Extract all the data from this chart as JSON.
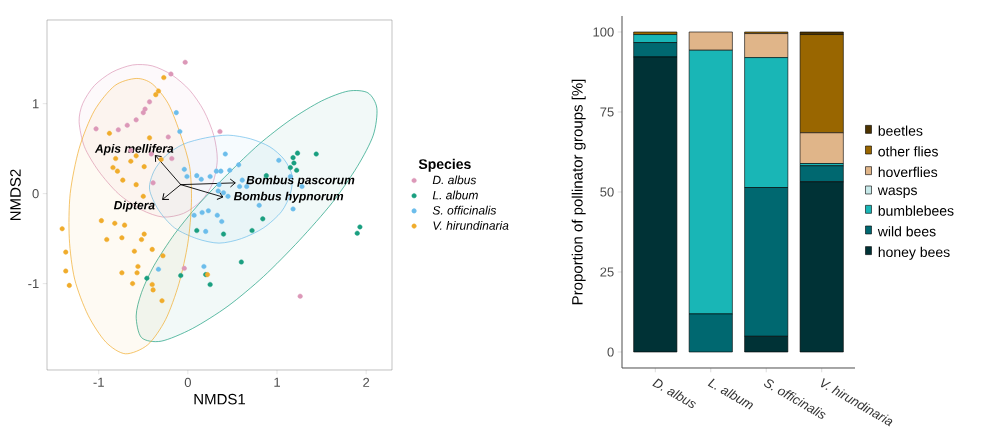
{
  "chart_data": [
    {
      "type": "scatter",
      "xlabel": "NMDS1",
      "ylabel": "NMDS2",
      "legend_title": "Species",
      "legend": "right",
      "marker": "circle",
      "grid": false,
      "xlim": [
        -1.58,
        2.29
      ],
      "ylim": [
        -1.96,
        1.93
      ],
      "xticks": [
        -1,
        0,
        1,
        2
      ],
      "yticks": [
        -1,
        0,
        1
      ],
      "series": [
        {
          "name": "D. albus",
          "color": "#dc98b8",
          "x": [
            -0.03,
            -0.19,
            -0.43,
            -0.48,
            -0.5,
            -0.58,
            -0.68,
            -0.78,
            -1.03,
            -0.22,
            0.36,
            -0.64,
            -0.41,
            -0.18,
            -0.39,
            -0.04,
            1.26
          ],
          "values": [
            1.46,
            1.33,
            1.02,
            0.94,
            0.9,
            0.82,
            0.76,
            0.71,
            0.72,
            0.63,
            0.69,
            0.48,
            0.44,
            0.39,
            0.12,
            -0.83,
            -1.14
          ]
        },
        {
          "name": "L. album",
          "color": "#1a9f80",
          "x": [
            -0.46,
            -0.08,
            0.1,
            0.2,
            0.25,
            1.23,
            1.18,
            1.44,
            1.19,
            1.15,
            1.22,
            0.88,
            0.84,
            0.72,
            0.4,
            0.6,
            1.93,
            1.9
          ],
          "values": [
            -0.94,
            -0.91,
            -0.41,
            -0.9,
            -1.01,
            0.45,
            0.4,
            0.44,
            0.34,
            0.29,
            0.26,
            0.2,
            -0.28,
            -0.41,
            -0.45,
            -0.76,
            -0.37,
            -0.44
          ]
        },
        {
          "name": "S. officinalis",
          "color": "#6cbdeb",
          "x": [
            -0.13,
            -0.09,
            -0.04,
            -0.01,
            0.1,
            0.15,
            0.25,
            0.32,
            -0.33,
            0.18,
            0.07,
            0.16,
            0.23,
            0.33,
            0.2,
            0.42,
            0.57,
            0.47,
            0.37,
            1.02,
            1.15,
            0.61,
            0.66,
            0.58,
            0.35,
            0.4,
            0.34,
            0.45,
            1.28,
            0.8,
            1.18,
            0.38
          ],
          "values": [
            0.9,
            0.69,
            0.27,
            0.19,
            0.2,
            0.16,
            0.19,
            0.25,
            -0.84,
            -0.81,
            -0.24,
            -0.21,
            -0.19,
            -0.24,
            -0.42,
            0.44,
            0.32,
            0.26,
            0.25,
            0.37,
            0.19,
            0.15,
            0.08,
            0.08,
            0.1,
            0.01,
            0.03,
            -0.03,
            0.08,
            -0.13,
            -0.17,
            -0.31
          ]
        },
        {
          "name": "V. hirundinaria",
          "color": "#f0ac2c",
          "x": [
            -0.27,
            -0.33,
            -0.36,
            -0.88,
            -0.43,
            -0.81,
            -0.58,
            -0.64,
            -0.84,
            -0.79,
            -0.49,
            -0.73,
            -0.58,
            -0.5,
            -0.3,
            -1.41,
            -0.97,
            -0.82,
            -0.71,
            -0.91,
            -0.74,
            -0.49,
            -0.52,
            -1.37,
            -0.6,
            -0.4,
            -0.28,
            -1.37,
            -1.33,
            -0.56,
            -0.57,
            -0.74,
            -0.62,
            -0.4,
            -0.39,
            -0.29,
            0.22
          ],
          "values": [
            1.29,
            1.14,
            1.1,
            0.67,
            0.62,
            0.39,
            0.42,
            0.36,
            0.29,
            0.25,
            0.3,
            0.15,
            0.1,
            -0.03,
            0.38,
            -0.39,
            -0.3,
            -0.33,
            -0.35,
            -0.51,
            -0.49,
            -0.45,
            -0.51,
            -0.65,
            -0.64,
            -0.62,
            -0.69,
            -0.86,
            -1.02,
            -0.81,
            -0.88,
            -0.88,
            -1.0,
            -1.01,
            -1.07,
            -1.19,
            -0.9
          ]
        }
      ],
      "annotations": [
        "Apis mellifera",
        "Diptera",
        "Bombus pascorum",
        "Bombus hypnorum"
      ]
    },
    {
      "type": "bar",
      "stacked": true,
      "ylabel": "Proportion of pollinator groups [%]",
      "legend": "right",
      "grid": false,
      "categories": [
        "D. albus",
        "L. album",
        "S. officinalis",
        "V. hirundinaria"
      ],
      "ylim": [
        -5,
        105
      ],
      "yticks": [
        0,
        25,
        50,
        75,
        100
      ],
      "series": [
        {
          "name": "honey bees",
          "color": "#003236",
          "values": [
            92.2,
            0,
            4.9,
            53.2
          ]
        },
        {
          "name": "wild bees",
          "color": "#006870",
          "values": [
            4.5,
            11.9,
            46.5,
            5.0
          ]
        },
        {
          "name": "bumblebees",
          "color": "#19b6b6",
          "values": [
            2.5,
            82.4,
            40.6,
            0.7
          ]
        },
        {
          "name": "wasps",
          "color": "#c7e9e9",
          "values": [
            0,
            0,
            0,
            0
          ]
        },
        {
          "name": "hoverflies",
          "color": "#e0b589",
          "values": [
            0,
            5.7,
            7.5,
            9.6
          ]
        },
        {
          "name": "other flies",
          "color": "#996600",
          "values": [
            0.8,
            0,
            0.5,
            30.7
          ]
        },
        {
          "name": "beetles",
          "color": "#4d3300",
          "values": [
            0,
            0,
            0,
            0.8
          ]
        }
      ]
    }
  ]
}
